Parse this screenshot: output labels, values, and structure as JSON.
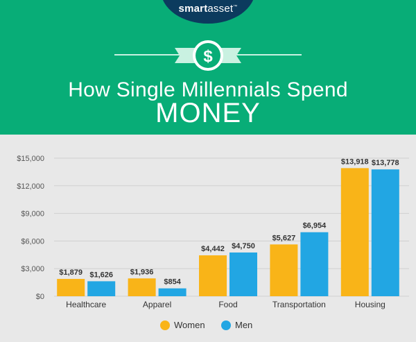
{
  "brand": {
    "name_bold": "smart",
    "name_regular": "asset",
    "trademark": "™"
  },
  "header": {
    "title_line1": "How Single Millennials Spend",
    "title_line2": "MONEY",
    "icon": "dollar-circle-icon"
  },
  "colors": {
    "header_bg": "#08ad77",
    "logo_bg": "#0c3b5e",
    "women": "#f9b418",
    "men": "#22a6e3",
    "chart_bg": "#e8e8e8"
  },
  "legend": [
    {
      "label": "Women",
      "color": "#f9b418"
    },
    {
      "label": "Men",
      "color": "#22a6e3"
    }
  ],
  "chart_data": {
    "type": "bar",
    "categories": [
      "Healthcare",
      "Apparel",
      "Food",
      "Transportation",
      "Housing"
    ],
    "series": [
      {
        "name": "Women",
        "values": [
          1879,
          1936,
          4442,
          5627,
          13918
        ],
        "labels": [
          "$1,879",
          "$1,936",
          "$4,442",
          "$5,627",
          "$13,918"
        ]
      },
      {
        "name": "Men",
        "values": [
          1626,
          854,
          4750,
          6954,
          13778
        ],
        "labels": [
          "$1,626",
          "$854",
          "$4,750",
          "$6,954",
          "$13,778"
        ]
      }
    ],
    "ylim": [
      0,
      15000
    ],
    "yticks": [
      0,
      3000,
      6000,
      9000,
      12000,
      15000
    ],
    "ytick_labels": [
      "$0",
      "$3,000",
      "$6,000",
      "$9,000",
      "$12,000",
      "$15,000"
    ],
    "grid": true,
    "legend_position": "bottom-center",
    "title": "How Single Millennials Spend MONEY",
    "xlabel": "",
    "ylabel": ""
  }
}
